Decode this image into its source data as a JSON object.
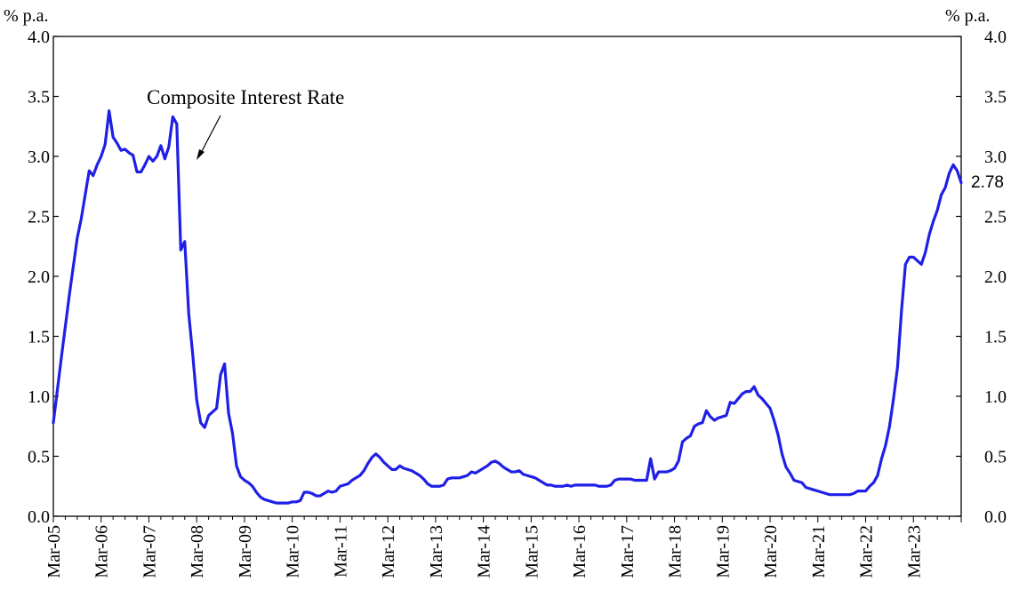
{
  "chart_data": {
    "type": "line",
    "y_unit_left": "% p.a.",
    "y_unit_right": "% p.a.",
    "ylim": [
      0,
      4.0
    ],
    "y_ticks": [
      "0.0",
      "0.5",
      "1.0",
      "1.5",
      "2.0",
      "2.5",
      "3.0",
      "3.5",
      "4.0"
    ],
    "x_range": [
      "2005-03",
      "2023-12"
    ],
    "x_tick_labels": [
      "Mar-05",
      "Mar-06",
      "Mar-07",
      "Mar-08",
      "Mar-09",
      "Mar-10",
      "Mar-11",
      "Mar-12",
      "Mar-13",
      "Mar-14",
      "Mar-15",
      "Mar-16",
      "Mar-17",
      "Mar-18",
      "Mar-19",
      "Mar-20",
      "Mar-21",
      "Mar-22",
      "Mar-23"
    ],
    "grid": false,
    "annotation": "Composite Interest Rate",
    "end_value_label": "2.78",
    "line_color": "#1f1fe6",
    "series": [
      {
        "points": [
          [
            "2005-03",
            0.78
          ],
          [
            "2005-04",
            1.05
          ],
          [
            "2005-05",
            1.32
          ],
          [
            "2005-06",
            1.58
          ],
          [
            "2005-07",
            1.84
          ],
          [
            "2005-08",
            2.08
          ],
          [
            "2005-09",
            2.32
          ],
          [
            "2005-10",
            2.48
          ],
          [
            "2005-11",
            2.68
          ],
          [
            "2005-12",
            2.88
          ],
          [
            "2006-01",
            2.84
          ],
          [
            "2006-02",
            2.93
          ],
          [
            "2006-03",
            3.0
          ],
          [
            "2006-04",
            3.1
          ],
          [
            "2006-05",
            3.38
          ],
          [
            "2006-06",
            3.16
          ],
          [
            "2006-07",
            3.11
          ],
          [
            "2006-08",
            3.05
          ],
          [
            "2006-09",
            3.06
          ],
          [
            "2006-10",
            3.03
          ],
          [
            "2006-11",
            3.01
          ],
          [
            "2006-12",
            2.87
          ],
          [
            "2007-01",
            2.87
          ],
          [
            "2007-02",
            2.93
          ],
          [
            "2007-03",
            3.0
          ],
          [
            "2007-04",
            2.96
          ],
          [
            "2007-05",
            3.0
          ],
          [
            "2007-06",
            3.09
          ],
          [
            "2007-07",
            2.98
          ],
          [
            "2007-08",
            3.08
          ],
          [
            "2007-09",
            3.33
          ],
          [
            "2007-10",
            3.27
          ],
          [
            "2007-11",
            2.22
          ],
          [
            "2007-12",
            2.29
          ],
          [
            "2008-01",
            1.69
          ],
          [
            "2008-02",
            1.35
          ],
          [
            "2008-03",
            0.97
          ],
          [
            "2008-04",
            0.78
          ],
          [
            "2008-05",
            0.74
          ],
          [
            "2008-06",
            0.84
          ],
          [
            "2008-07",
            0.87
          ],
          [
            "2008-08",
            0.9
          ],
          [
            "2008-09",
            1.18
          ],
          [
            "2008-10",
            1.27
          ],
          [
            "2008-11",
            0.86
          ],
          [
            "2008-12",
            0.69
          ],
          [
            "2009-01",
            0.42
          ],
          [
            "2009-02",
            0.33
          ],
          [
            "2009-03",
            0.3
          ],
          [
            "2009-04",
            0.28
          ],
          [
            "2009-05",
            0.25
          ],
          [
            "2009-06",
            0.2
          ],
          [
            "2009-07",
            0.16
          ],
          [
            "2009-08",
            0.14
          ],
          [
            "2009-09",
            0.13
          ],
          [
            "2009-10",
            0.12
          ],
          [
            "2009-11",
            0.11
          ],
          [
            "2009-12",
            0.11
          ],
          [
            "2010-01",
            0.11
          ],
          [
            "2010-02",
            0.11
          ],
          [
            "2010-03",
            0.12
          ],
          [
            "2010-04",
            0.12
          ],
          [
            "2010-05",
            0.13
          ],
          [
            "2010-06",
            0.2
          ],
          [
            "2010-07",
            0.2
          ],
          [
            "2010-08",
            0.19
          ],
          [
            "2010-09",
            0.17
          ],
          [
            "2010-10",
            0.17
          ],
          [
            "2010-11",
            0.19
          ],
          [
            "2010-12",
            0.21
          ],
          [
            "2011-01",
            0.2
          ],
          [
            "2011-02",
            0.21
          ],
          [
            "2011-03",
            0.25
          ],
          [
            "2011-04",
            0.26
          ],
          [
            "2011-05",
            0.27
          ],
          [
            "2011-06",
            0.3
          ],
          [
            "2011-07",
            0.32
          ],
          [
            "2011-08",
            0.34
          ],
          [
            "2011-09",
            0.38
          ],
          [
            "2011-10",
            0.44
          ],
          [
            "2011-11",
            0.49
          ],
          [
            "2011-12",
            0.52
          ],
          [
            "2012-01",
            0.49
          ],
          [
            "2012-02",
            0.45
          ],
          [
            "2012-03",
            0.42
          ],
          [
            "2012-04",
            0.39
          ],
          [
            "2012-05",
            0.39
          ],
          [
            "2012-06",
            0.42
          ],
          [
            "2012-07",
            0.4
          ],
          [
            "2012-08",
            0.39
          ],
          [
            "2012-09",
            0.38
          ],
          [
            "2012-10",
            0.36
          ],
          [
            "2012-11",
            0.34
          ],
          [
            "2012-12",
            0.31
          ],
          [
            "2013-01",
            0.27
          ],
          [
            "2013-02",
            0.25
          ],
          [
            "2013-03",
            0.25
          ],
          [
            "2013-04",
            0.25
          ],
          [
            "2013-05",
            0.26
          ],
          [
            "2013-06",
            0.31
          ],
          [
            "2013-07",
            0.32
          ],
          [
            "2013-08",
            0.32
          ],
          [
            "2013-09",
            0.32
          ],
          [
            "2013-10",
            0.33
          ],
          [
            "2013-11",
            0.34
          ],
          [
            "2013-12",
            0.37
          ],
          [
            "2014-01",
            0.36
          ],
          [
            "2014-02",
            0.38
          ],
          [
            "2014-03",
            0.4
          ],
          [
            "2014-04",
            0.42
          ],
          [
            "2014-05",
            0.45
          ],
          [
            "2014-06",
            0.46
          ],
          [
            "2014-07",
            0.44
          ],
          [
            "2014-08",
            0.41
          ],
          [
            "2014-09",
            0.39
          ],
          [
            "2014-10",
            0.37
          ],
          [
            "2014-11",
            0.37
          ],
          [
            "2014-12",
            0.38
          ],
          [
            "2015-01",
            0.35
          ],
          [
            "2015-02",
            0.34
          ],
          [
            "2015-03",
            0.33
          ],
          [
            "2015-04",
            0.32
          ],
          [
            "2015-05",
            0.3
          ],
          [
            "2015-06",
            0.28
          ],
          [
            "2015-07",
            0.26
          ],
          [
            "2015-08",
            0.26
          ],
          [
            "2015-09",
            0.25
          ],
          [
            "2015-10",
            0.25
          ],
          [
            "2015-11",
            0.25
          ],
          [
            "2015-12",
            0.26
          ],
          [
            "2016-01",
            0.25
          ],
          [
            "2016-02",
            0.26
          ],
          [
            "2016-03",
            0.26
          ],
          [
            "2016-04",
            0.26
          ],
          [
            "2016-05",
            0.26
          ],
          [
            "2016-06",
            0.26
          ],
          [
            "2016-07",
            0.26
          ],
          [
            "2016-08",
            0.25
          ],
          [
            "2016-09",
            0.25
          ],
          [
            "2016-10",
            0.25
          ],
          [
            "2016-11",
            0.26
          ],
          [
            "2016-12",
            0.3
          ],
          [
            "2017-01",
            0.31
          ],
          [
            "2017-02",
            0.31
          ],
          [
            "2017-03",
            0.31
          ],
          [
            "2017-04",
            0.31
          ],
          [
            "2017-05",
            0.3
          ],
          [
            "2017-06",
            0.3
          ],
          [
            "2017-07",
            0.3
          ],
          [
            "2017-08",
            0.3
          ],
          [
            "2017-09",
            0.48
          ],
          [
            "2017-10",
            0.31
          ],
          [
            "2017-11",
            0.37
          ],
          [
            "2017-12",
            0.37
          ],
          [
            "2018-01",
            0.37
          ],
          [
            "2018-02",
            0.38
          ],
          [
            "2018-03",
            0.4
          ],
          [
            "2018-04",
            0.46
          ],
          [
            "2018-05",
            0.62
          ],
          [
            "2018-06",
            0.65
          ],
          [
            "2018-07",
            0.67
          ],
          [
            "2018-08",
            0.75
          ],
          [
            "2018-09",
            0.77
          ],
          [
            "2018-10",
            0.78
          ],
          [
            "2018-11",
            0.88
          ],
          [
            "2018-12",
            0.83
          ],
          [
            "2019-01",
            0.8
          ],
          [
            "2019-02",
            0.82
          ],
          [
            "2019-03",
            0.83
          ],
          [
            "2019-04",
            0.84
          ],
          [
            "2019-05",
            0.95
          ],
          [
            "2019-06",
            0.94
          ],
          [
            "2019-07",
            0.98
          ],
          [
            "2019-08",
            1.02
          ],
          [
            "2019-09",
            1.04
          ],
          [
            "2019-10",
            1.04
          ],
          [
            "2019-11",
            1.08
          ],
          [
            "2019-12",
            1.01
          ],
          [
            "2020-01",
            0.98
          ],
          [
            "2020-02",
            0.94
          ],
          [
            "2020-03",
            0.9
          ],
          [
            "2020-04",
            0.8
          ],
          [
            "2020-05",
            0.68
          ],
          [
            "2020-06",
            0.52
          ],
          [
            "2020-07",
            0.41
          ],
          [
            "2020-08",
            0.36
          ],
          [
            "2020-09",
            0.3
          ],
          [
            "2020-10",
            0.29
          ],
          [
            "2020-11",
            0.28
          ],
          [
            "2020-12",
            0.24
          ],
          [
            "2021-01",
            0.23
          ],
          [
            "2021-02",
            0.22
          ],
          [
            "2021-03",
            0.21
          ],
          [
            "2021-04",
            0.2
          ],
          [
            "2021-05",
            0.19
          ],
          [
            "2021-06",
            0.18
          ],
          [
            "2021-07",
            0.18
          ],
          [
            "2021-08",
            0.18
          ],
          [
            "2021-09",
            0.18
          ],
          [
            "2021-10",
            0.18
          ],
          [
            "2021-11",
            0.18
          ],
          [
            "2021-12",
            0.19
          ],
          [
            "2022-01",
            0.21
          ],
          [
            "2022-02",
            0.21
          ],
          [
            "2022-03",
            0.21
          ],
          [
            "2022-04",
            0.25
          ],
          [
            "2022-05",
            0.28
          ],
          [
            "2022-06",
            0.34
          ],
          [
            "2022-07",
            0.48
          ],
          [
            "2022-08",
            0.59
          ],
          [
            "2022-09",
            0.75
          ],
          [
            "2022-10",
            0.98
          ],
          [
            "2022-11",
            1.24
          ],
          [
            "2022-12",
            1.71
          ],
          [
            "2023-01",
            2.1
          ],
          [
            "2023-02",
            2.16
          ],
          [
            "2023-03",
            2.16
          ],
          [
            "2023-04",
            2.13
          ],
          [
            "2023-05",
            2.1
          ],
          [
            "2023-06",
            2.2
          ],
          [
            "2023-07",
            2.35
          ],
          [
            "2023-08",
            2.46
          ],
          [
            "2023-09",
            2.55
          ],
          [
            "2023-10",
            2.68
          ],
          [
            "2023-11",
            2.74
          ],
          [
            "2023-12",
            2.86
          ],
          [
            "2024-01",
            2.93
          ],
          [
            "2024-02",
            2.88
          ],
          [
            "2024-03",
            2.78
          ]
        ]
      }
    ]
  }
}
